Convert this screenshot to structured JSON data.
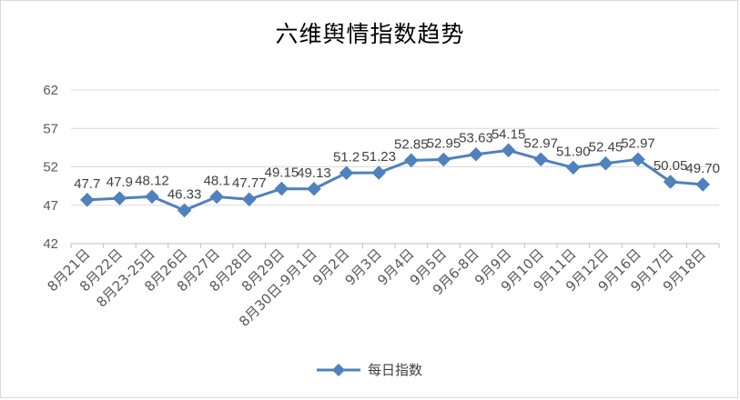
{
  "chart_data": {
    "type": "line",
    "title": "六维舆情指数趋势",
    "categories": [
      "8月21日",
      "8月22日",
      "8月23-25日",
      "8月26日",
      "8月27日",
      "8月28日",
      "8月29日",
      "8月30日-9月1日",
      "9月2日",
      "9月3日",
      "9月4日",
      "9月5日",
      "9月6-8日",
      "9月9日",
      "9月10日",
      "9月11日",
      "9月12日",
      "9月16日",
      "9月17日",
      "9月18日"
    ],
    "series": [
      {
        "name": "每日指数",
        "values": [
          47.7,
          47.9,
          48.12,
          46.33,
          48.1,
          47.77,
          49.15,
          49.13,
          51.2,
          51.23,
          52.85,
          52.95,
          53.63,
          54.15,
          52.97,
          51.9,
          52.45,
          52.97,
          50.05,
          49.7
        ],
        "labels": [
          "47.7",
          "47.9",
          "48.12",
          "46.33",
          "48.1",
          "47.77",
          "49.15",
          "49.13",
          "51.2",
          "51.23",
          "52.85",
          "52.95",
          "53.63",
          "54.15",
          "52.97",
          "51.90",
          "52.45",
          "52.97",
          "50.05",
          "49.70"
        ],
        "color": "#4f81bd"
      }
    ],
    "yticks": [
      "62",
      "57",
      "52",
      "47",
      "42"
    ],
    "ylim": [
      42,
      62
    ],
    "grid": true,
    "legend": "bottom"
  }
}
